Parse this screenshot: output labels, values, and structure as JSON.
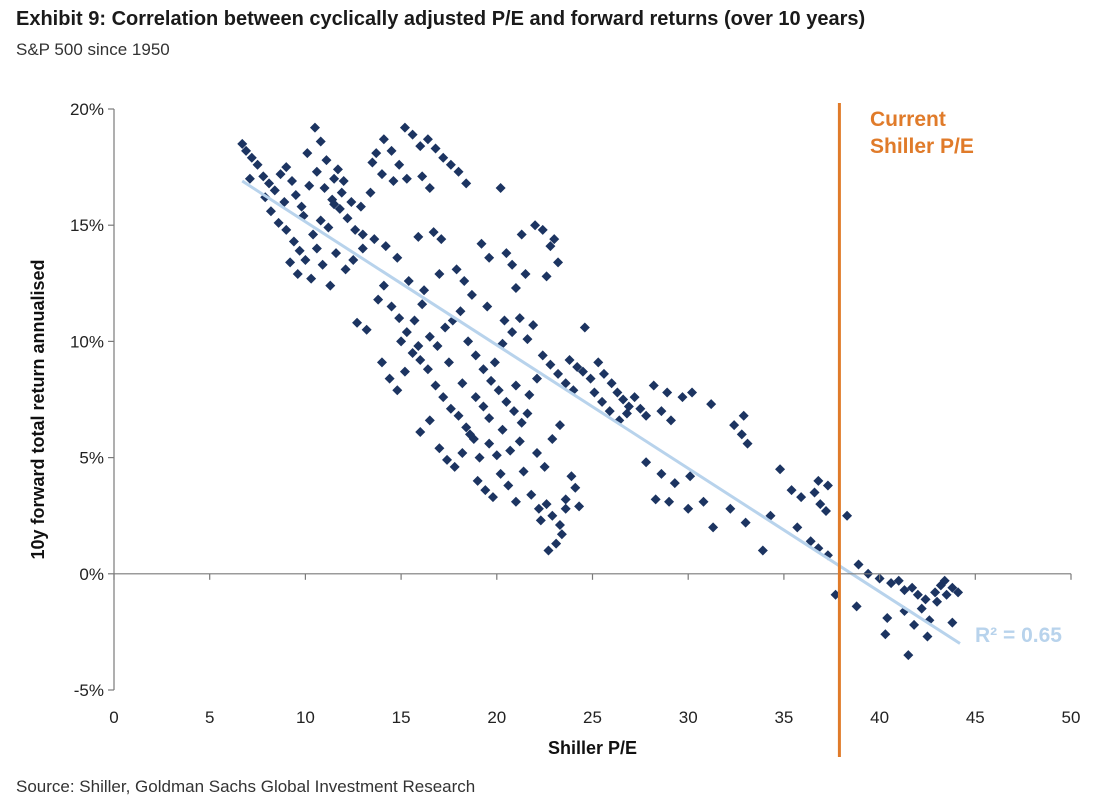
{
  "header": {
    "title": "Exhibit 9: Correlation between cyclically adjusted P/E and forward returns (over 10 years)",
    "subtitle": "S&P 500 since 1950"
  },
  "footer": {
    "source": "Source: Shiller, Goldman Sachs Global Investment Research"
  },
  "chart_data": {
    "type": "scatter",
    "title": "Exhibit 9: Correlation between cyclically adjusted P/E and forward returns (over 10 years)",
    "subtitle": "S&P 500 since 1950",
    "xlabel": "Shiller P/E",
    "ylabel": "10y forward total return annualised",
    "xlim": [
      0,
      50
    ],
    "ylim": [
      -5,
      20
    ],
    "x_ticks": [
      0,
      5,
      10,
      15,
      20,
      25,
      30,
      35,
      40,
      45,
      50
    ],
    "y_ticks": [
      -5,
      0,
      5,
      10,
      15,
      20
    ],
    "y_tick_labels": [
      "-5%",
      "0%",
      "5%",
      "10%",
      "15%",
      "20%"
    ],
    "grid": false,
    "colors": {
      "points": "#1c3461",
      "trend": "#b8d3ec",
      "current": "#e07b2a"
    },
    "series": [
      {
        "marker": "diamond",
        "points": [
          [
            6.7,
            18.5
          ],
          [
            6.9,
            18.2
          ],
          [
            7.2,
            17.9
          ],
          [
            7.5,
            17.6
          ],
          [
            7.8,
            17.1
          ],
          [
            8.1,
            16.8
          ],
          [
            8.4,
            16.5
          ],
          [
            8.7,
            17.2
          ],
          [
            9.0,
            17.5
          ],
          [
            9.3,
            16.9
          ],
          [
            9.5,
            16.3
          ],
          [
            9.8,
            15.8
          ],
          [
            10.2,
            16.7
          ],
          [
            10.6,
            17.3
          ],
          [
            11.0,
            16.6
          ],
          [
            11.4,
            16.1
          ],
          [
            11.8,
            15.7
          ],
          [
            12.2,
            15.3
          ],
          [
            12.6,
            14.8
          ],
          [
            8.2,
            15.6
          ],
          [
            8.6,
            15.1
          ],
          [
            9.0,
            14.8
          ],
          [
            9.4,
            14.3
          ],
          [
            9.7,
            13.9
          ],
          [
            10.0,
            13.5
          ],
          [
            10.4,
            14.6
          ],
          [
            10.8,
            15.2
          ],
          [
            11.2,
            14.9
          ],
          [
            11.5,
            15.9
          ],
          [
            11.9,
            16.4
          ],
          [
            10.1,
            18.1
          ],
          [
            10.5,
            19.2
          ],
          [
            10.8,
            18.6
          ],
          [
            11.1,
            17.8
          ],
          [
            11.5,
            17.0
          ],
          [
            12.0,
            16.9
          ],
          [
            12.4,
            16.0
          ],
          [
            9.2,
            13.4
          ],
          [
            9.6,
            12.9
          ],
          [
            10.3,
            12.7
          ],
          [
            10.9,
            13.3
          ],
          [
            11.6,
            13.8
          ],
          [
            12.1,
            13.1
          ],
          [
            13.0,
            14.0
          ],
          [
            13.6,
            14.4
          ],
          [
            14.2,
            14.1
          ],
          [
            14.8,
            13.6
          ],
          [
            13.4,
            16.4
          ],
          [
            14.0,
            17.2
          ],
          [
            13.5,
            17.7
          ],
          [
            13.7,
            18.1
          ],
          [
            14.1,
            18.7
          ],
          [
            14.5,
            18.2
          ],
          [
            14.9,
            17.6
          ],
          [
            15.2,
            19.2
          ],
          [
            15.6,
            18.9
          ],
          [
            16.0,
            18.4
          ],
          [
            16.4,
            18.7
          ],
          [
            16.8,
            18.3
          ],
          [
            17.2,
            17.9
          ],
          [
            17.6,
            17.6
          ],
          [
            18.0,
            17.3
          ],
          [
            18.4,
            16.8
          ],
          [
            16.1,
            17.1
          ],
          [
            16.5,
            16.6
          ],
          [
            15.3,
            17.0
          ],
          [
            14.6,
            16.9
          ],
          [
            20.2,
            16.6
          ],
          [
            12.7,
            10.8
          ],
          [
            13.2,
            10.5
          ],
          [
            13.8,
            11.8
          ],
          [
            14.1,
            12.4
          ],
          [
            14.5,
            11.5
          ],
          [
            14.9,
            11.0
          ],
          [
            15.3,
            10.4
          ],
          [
            15.7,
            10.9
          ],
          [
            16.1,
            11.6
          ],
          [
            16.5,
            10.2
          ],
          [
            16.9,
            9.8
          ],
          [
            17.3,
            10.6
          ],
          [
            17.7,
            10.9
          ],
          [
            18.1,
            11.3
          ],
          [
            18.5,
            10.0
          ],
          [
            18.9,
            9.4
          ],
          [
            19.3,
            8.8
          ],
          [
            19.7,
            8.3
          ],
          [
            20.1,
            7.9
          ],
          [
            20.5,
            7.4
          ],
          [
            20.9,
            7.0
          ],
          [
            21.3,
            6.5
          ],
          [
            14.0,
            9.1
          ],
          [
            14.4,
            8.4
          ],
          [
            14.8,
            7.9
          ],
          [
            15.2,
            8.7
          ],
          [
            15.6,
            9.5
          ],
          [
            16.0,
            9.2
          ],
          [
            16.4,
            8.8
          ],
          [
            16.8,
            8.1
          ],
          [
            17.2,
            7.6
          ],
          [
            17.6,
            7.1
          ],
          [
            18.0,
            6.8
          ],
          [
            18.4,
            6.3
          ],
          [
            18.8,
            5.8
          ],
          [
            16.0,
            6.1
          ],
          [
            16.5,
            6.6
          ],
          [
            17.0,
            5.4
          ],
          [
            17.4,
            4.9
          ],
          [
            17.8,
            4.6
          ],
          [
            18.2,
            5.2
          ],
          [
            18.6,
            6.0
          ],
          [
            19.0,
            4.0
          ],
          [
            19.4,
            3.6
          ],
          [
            19.8,
            3.3
          ],
          [
            20.2,
            4.3
          ],
          [
            20.6,
            3.8
          ],
          [
            21.0,
            3.1
          ],
          [
            21.4,
            4.4
          ],
          [
            21.8,
            3.4
          ],
          [
            22.2,
            2.8
          ],
          [
            22.6,
            3.0
          ],
          [
            22.9,
            2.5
          ],
          [
            23.3,
            2.1
          ],
          [
            22.7,
            1.0
          ],
          [
            23.1,
            1.3
          ],
          [
            23.4,
            1.7
          ],
          [
            23.6,
            3.2
          ],
          [
            23.9,
            4.2
          ],
          [
            24.1,
            3.7
          ],
          [
            22.1,
            5.2
          ],
          [
            22.5,
            4.6
          ],
          [
            22.9,
            5.8
          ],
          [
            23.3,
            6.4
          ],
          [
            21.2,
            5.7
          ],
          [
            21.6,
            6.9
          ],
          [
            20.0,
            5.1
          ],
          [
            19.6,
            5.6
          ],
          [
            19.3,
            7.2
          ],
          [
            19.9,
            9.1
          ],
          [
            20.3,
            9.9
          ],
          [
            20.8,
            10.4
          ],
          [
            21.2,
            11.0
          ],
          [
            21.6,
            10.1
          ],
          [
            21.0,
            12.3
          ],
          [
            21.5,
            12.9
          ],
          [
            20.8,
            13.3
          ],
          [
            21.3,
            14.6
          ],
          [
            20.5,
            13.8
          ],
          [
            21.9,
            10.7
          ],
          [
            22.4,
            9.4
          ],
          [
            22.8,
            9.0
          ],
          [
            23.2,
            8.6
          ],
          [
            23.6,
            8.2
          ],
          [
            24.0,
            7.9
          ],
          [
            24.5,
            8.7
          ],
          [
            24.9,
            8.4
          ],
          [
            25.3,
            9.1
          ],
          [
            25.6,
            8.6
          ],
          [
            26.0,
            8.2
          ],
          [
            26.3,
            7.8
          ],
          [
            26.6,
            7.5
          ],
          [
            26.9,
            7.2
          ],
          [
            27.2,
            7.6
          ],
          [
            27.5,
            7.1
          ],
          [
            27.8,
            6.8
          ],
          [
            25.1,
            7.8
          ],
          [
            25.5,
            7.4
          ],
          [
            25.9,
            7.0
          ],
          [
            26.4,
            6.6
          ],
          [
            26.8,
            6.9
          ],
          [
            24.2,
            8.9
          ],
          [
            23.8,
            9.2
          ],
          [
            22.0,
            15.0
          ],
          [
            22.4,
            14.8
          ],
          [
            22.8,
            14.1
          ],
          [
            23.2,
            13.4
          ],
          [
            22.6,
            12.8
          ],
          [
            23.0,
            14.4
          ],
          [
            19.2,
            14.2
          ],
          [
            19.6,
            13.6
          ],
          [
            18.3,
            12.6
          ],
          [
            17.9,
            13.1
          ],
          [
            17.1,
            14.4
          ],
          [
            16.7,
            14.7
          ],
          [
            15.9,
            14.5
          ],
          [
            24.6,
            10.6
          ],
          [
            28.2,
            8.1
          ],
          [
            28.9,
            7.8
          ],
          [
            29.7,
            7.6
          ],
          [
            30.2,
            7.8
          ],
          [
            28.6,
            7.0
          ],
          [
            29.1,
            6.6
          ],
          [
            31.2,
            7.3
          ],
          [
            32.4,
            6.4
          ],
          [
            32.8,
            6.0
          ],
          [
            33.1,
            5.6
          ],
          [
            32.9,
            6.8
          ],
          [
            27.8,
            4.8
          ],
          [
            28.6,
            4.3
          ],
          [
            29.3,
            3.9
          ],
          [
            30.1,
            4.2
          ],
          [
            28.3,
            3.2
          ],
          [
            29.0,
            3.1
          ],
          [
            30.0,
            2.8
          ],
          [
            30.8,
            3.1
          ],
          [
            31.3,
            2.0
          ],
          [
            32.2,
            2.8
          ],
          [
            33.0,
            2.2
          ],
          [
            33.9,
            1.0
          ],
          [
            34.3,
            2.5
          ],
          [
            34.8,
            4.5
          ],
          [
            35.4,
            3.6
          ],
          [
            35.9,
            3.3
          ],
          [
            36.6,
            3.5
          ],
          [
            36.9,
            3.0
          ],
          [
            37.2,
            2.7
          ],
          [
            37.3,
            3.8
          ],
          [
            36.8,
            4.0
          ],
          [
            35.7,
            2.0
          ],
          [
            36.4,
            1.4
          ],
          [
            36.8,
            1.1
          ],
          [
            37.3,
            0.8
          ],
          [
            38.3,
            2.5
          ],
          [
            37.7,
            -0.9
          ],
          [
            38.8,
            -1.4
          ],
          [
            38.9,
            0.4
          ],
          [
            39.4,
            0.0
          ],
          [
            40.0,
            -0.2
          ],
          [
            40.6,
            -0.4
          ],
          [
            41.0,
            -0.3
          ],
          [
            41.3,
            -0.7
          ],
          [
            41.7,
            -0.6
          ],
          [
            42.0,
            -0.9
          ],
          [
            42.4,
            -1.1
          ],
          [
            42.9,
            -0.8
          ],
          [
            43.2,
            -0.5
          ],
          [
            43.5,
            -0.9
          ],
          [
            43.8,
            -0.6
          ],
          [
            44.1,
            -0.8
          ],
          [
            42.2,
            -1.5
          ],
          [
            42.6,
            -2.0
          ],
          [
            43.0,
            -1.2
          ],
          [
            43.4,
            -0.3
          ],
          [
            40.4,
            -1.9
          ],
          [
            40.3,
            -2.6
          ],
          [
            41.3,
            -1.6
          ],
          [
            41.8,
            -2.2
          ],
          [
            42.5,
            -2.7
          ],
          [
            41.5,
            -3.5
          ],
          [
            43.8,
            -2.1
          ],
          [
            13.0,
            14.6
          ],
          [
            12.5,
            13.5
          ],
          [
            11.3,
            12.4
          ],
          [
            10.6,
            14.0
          ],
          [
            9.9,
            15.4
          ],
          [
            8.9,
            16.0
          ],
          [
            7.9,
            16.2
          ],
          [
            7.1,
            17.0
          ],
          [
            12.9,
            15.8
          ],
          [
            11.7,
            17.4
          ],
          [
            15.4,
            12.6
          ],
          [
            16.2,
            12.2
          ],
          [
            17.0,
            12.9
          ],
          [
            18.7,
            12.0
          ],
          [
            19.5,
            11.5
          ],
          [
            20.4,
            10.9
          ],
          [
            17.5,
            9.1
          ],
          [
            18.2,
            8.2
          ],
          [
            18.9,
            7.6
          ],
          [
            19.6,
            6.7
          ],
          [
            20.3,
            6.2
          ],
          [
            21.7,
            7.7
          ],
          [
            22.1,
            8.4
          ],
          [
            21.0,
            8.1
          ],
          [
            15.0,
            10.0
          ],
          [
            15.9,
            9.8
          ],
          [
            19.1,
            5.0
          ],
          [
            20.7,
            5.3
          ],
          [
            22.3,
            2.3
          ],
          [
            23.6,
            2.8
          ],
          [
            24.3,
            2.9
          ]
        ]
      }
    ],
    "trendline": {
      "from": [
        6.7,
        16.9
      ],
      "to": [
        44.2,
        -3.0
      ]
    },
    "current_line": {
      "x": 37.9,
      "label_lines": [
        "Current",
        "Shiller P/E"
      ]
    },
    "annotations": {
      "r_squared": "R² = 0.65"
    }
  }
}
